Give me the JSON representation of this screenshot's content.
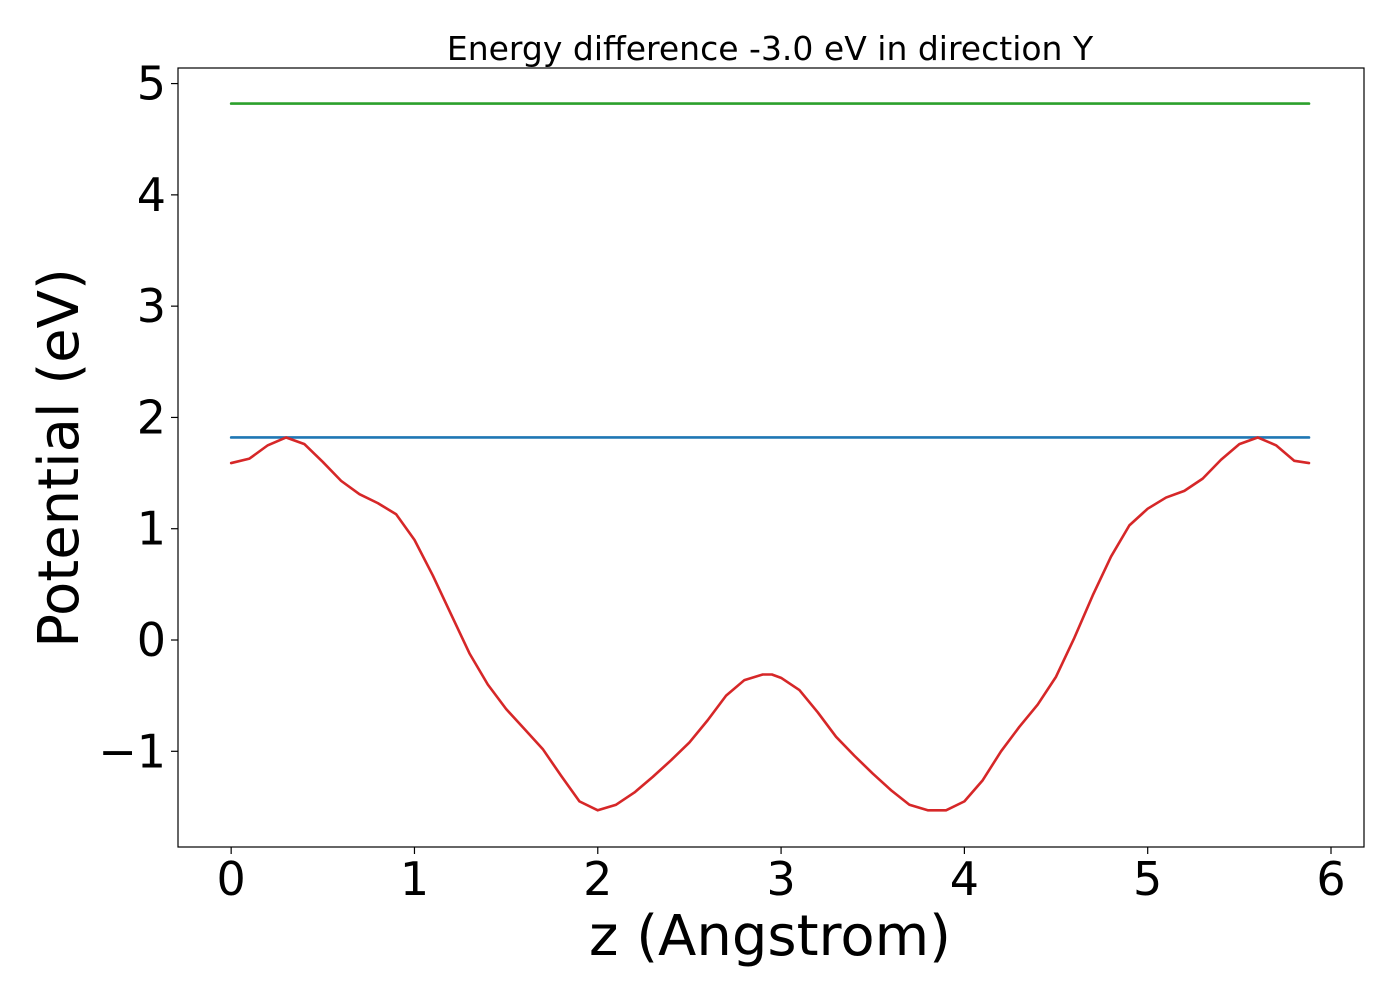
{
  "chart_data": {
    "type": "line",
    "title": "Energy difference -3.0 eV in direction Y",
    "xlabel": "z (Angstrom)",
    "ylabel": "Potential (eV)",
    "xlim": [
      -0.29,
      6.18
    ],
    "ylim": [
      -1.86,
      5.14
    ],
    "x_ticks": [
      {
        "value": 0,
        "label": "0"
      },
      {
        "value": 1,
        "label": "1"
      },
      {
        "value": 2,
        "label": "2"
      },
      {
        "value": 3,
        "label": "3"
      },
      {
        "value": 4,
        "label": "4"
      },
      {
        "value": 5,
        "label": "5"
      },
      {
        "value": 6,
        "label": "6"
      }
    ],
    "y_ticks": [
      {
        "value": -1,
        "label": "−1"
      },
      {
        "value": 0,
        "label": "0"
      },
      {
        "value": 1,
        "label": "1"
      },
      {
        "value": 2,
        "label": "2"
      },
      {
        "value": 3,
        "label": "3"
      },
      {
        "value": 4,
        "label": "4"
      },
      {
        "value": 5,
        "label": "5"
      }
    ],
    "grid": false,
    "legend": "none",
    "series": [
      {
        "color": "#2ca02c",
        "x": [
          0,
          5.88
        ],
        "y": [
          4.82,
          4.82
        ]
      },
      {
        "color": "#1f77b4",
        "x": [
          0,
          5.88
        ],
        "y": [
          1.82,
          1.82
        ]
      },
      {
        "color": "#d62728",
        "x": [
          0,
          0.1,
          0.2,
          0.3,
          0.4,
          0.5,
          0.6,
          0.7,
          0.8,
          0.9,
          1.0,
          1.1,
          1.2,
          1.3,
          1.4,
          1.5,
          1.6,
          1.7,
          1.8,
          1.9,
          2.0,
          2.1,
          2.2,
          2.3,
          2.4,
          2.5,
          2.6,
          2.7,
          2.8,
          2.9,
          2.95,
          3.0,
          3.1,
          3.2,
          3.3,
          3.4,
          3.5,
          3.6,
          3.7,
          3.8,
          3.9,
          4.0,
          4.1,
          4.2,
          4.3,
          4.4,
          4.5,
          4.6,
          4.7,
          4.8,
          4.9,
          5.0,
          5.1,
          5.2,
          5.3,
          5.4,
          5.5,
          5.6,
          5.7,
          5.8,
          5.88
        ],
        "y": [
          1.59,
          1.63,
          1.75,
          1.82,
          1.76,
          1.6,
          1.43,
          1.31,
          1.23,
          1.13,
          0.9,
          0.58,
          0.23,
          -0.12,
          -0.4,
          -0.62,
          -0.8,
          -0.98,
          -1.22,
          -1.45,
          -1.53,
          -1.48,
          -1.37,
          -1.23,
          -1.08,
          -0.92,
          -0.72,
          -0.5,
          -0.36,
          -0.31,
          -0.31,
          -0.34,
          -0.45,
          -0.65,
          -0.87,
          -1.04,
          -1.2,
          -1.35,
          -1.48,
          -1.53,
          -1.53,
          -1.45,
          -1.26,
          -1.0,
          -0.78,
          -0.58,
          -0.33,
          0.02,
          0.4,
          0.75,
          1.03,
          1.18,
          1.28,
          1.34,
          1.45,
          1.62,
          1.76,
          1.82,
          1.75,
          1.61,
          1.59
        ]
      }
    ]
  }
}
